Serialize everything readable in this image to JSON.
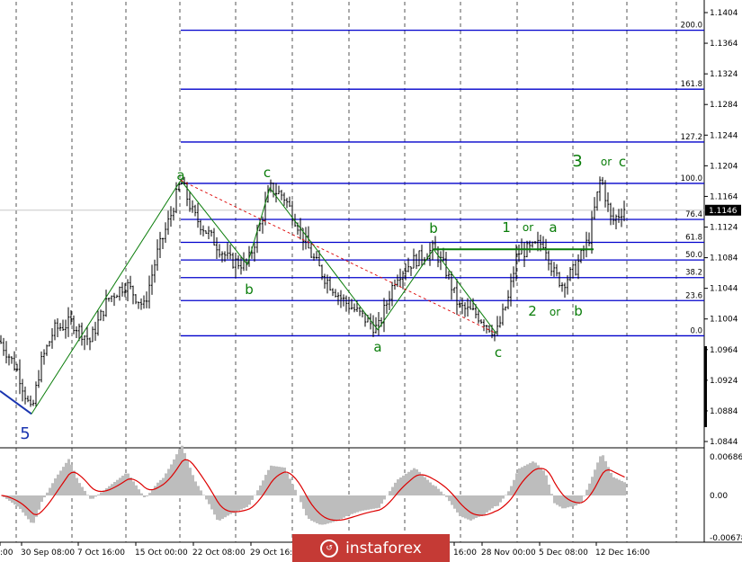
{
  "chart_data": {
    "type": "candlestick",
    "y_ticks": [
      "1.1404",
      "1.1364",
      "1.1324",
      "1.1284",
      "1.1244",
      "1.1204",
      "1.1164",
      "1.1124",
      "1.1084",
      "1.1044",
      "1.1004",
      "1.0964",
      "1.0924",
      "1.0884",
      "1.0844"
    ],
    "current_price": "1.1146",
    "x_labels": [
      ":00",
      "30 Sep 08:00",
      "7 Oct 16:00",
      "15 Oct 00:00",
      "22 Oct 08:00",
      "29 Oct 16:",
      "16:00",
      "28 Nov 00:00",
      "5 Dec 08:00",
      "12 Dec 16:00"
    ],
    "fibonacci": [
      {
        "label": "200.0",
        "price": 1.1381
      },
      {
        "label": "161.8",
        "price": 1.1304
      },
      {
        "label": "127.2",
        "price": 1.1235
      },
      {
        "label": "100.0",
        "price": 1.1181
      },
      {
        "label": "76.4",
        "price": 1.1134
      },
      {
        "label": "61.8",
        "price": 1.1104
      },
      {
        "label": "50.0",
        "price": 1.1081
      },
      {
        "label": "38.2",
        "price": 1.1058
      },
      {
        "label": "23.6",
        "price": 1.1028
      },
      {
        "label": "0.0",
        "price": 1.0982
      }
    ],
    "wave_labels": [
      "5",
      "a",
      "b",
      "c",
      "a",
      "b",
      "c",
      "1",
      "or",
      "a",
      "2",
      "or",
      "b",
      "3",
      "or",
      "c"
    ],
    "indicator": {
      "ticks": [
        "0.00686",
        "0.00",
        "-0.00678"
      ]
    },
    "colors": {
      "bars": "#000000",
      "fib": "#0000cc",
      "wave": "#0a7d0a",
      "signal": "#dd0000",
      "histogram": "#bdbdbd",
      "grid": "#555555"
    }
  },
  "brand": {
    "name": "instaforex"
  }
}
